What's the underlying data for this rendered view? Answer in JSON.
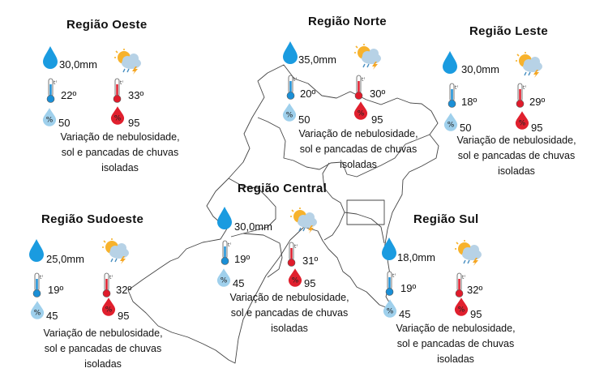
{
  "regions": {
    "oeste": {
      "title": "Região Oeste",
      "rain": "30,0mm",
      "temp_min": "22º",
      "temp_max": "33º",
      "hum_min": "50",
      "hum_max": "95",
      "description": [
        "Variação de nebulosidade,",
        "sol e pancadas de chuvas",
        "isoladas"
      ]
    },
    "norte": {
      "title": "Região Norte",
      "rain": "35,0mm",
      "temp_min": "20º",
      "temp_max": "30º",
      "hum_min": "50",
      "hum_max": "95",
      "description": [
        "Variação de nebulosidade,",
        "sol e pancadas de chuvas",
        "isoladas"
      ]
    },
    "leste": {
      "title": "Região Leste",
      "rain": "30,0mm",
      "temp_min": "18º",
      "temp_max": "29º",
      "hum_min": "50",
      "hum_max": "95",
      "description": [
        "Variação de nebulosidade,",
        "sol e pancadas de chuvas",
        "isoladas"
      ]
    },
    "central": {
      "title": "Região Central",
      "rain": "30,0mm",
      "temp_min": "19º",
      "temp_max": "31º",
      "hum_min": "45",
      "hum_max": "95",
      "description": [
        "Variação de nebulosidade,",
        "sol e pancadas de chuvas",
        "isoladas"
      ]
    },
    "sudoeste": {
      "title": "Região Sudoeste",
      "rain": "25,0mm",
      "temp_min": "19º",
      "temp_max": "32º",
      "hum_min": "45",
      "hum_max": "95",
      "description": [
        "Variação de nebulosidade,",
        "sol e pancadas de chuvas",
        "isoladas"
      ]
    },
    "sul": {
      "title": "Região Sul",
      "rain": "18,0mm",
      "temp_min": "19º",
      "temp_max": "32º",
      "hum_min": "45",
      "hum_max": "95",
      "description": [
        "Variação de nebulosidade,",
        "sol e pancadas de chuvas",
        "isoladas"
      ]
    }
  },
  "icons": {
    "rain": "raindrop-icon",
    "weather": "sun-cloud-storm-icon",
    "temp_min": "thermometer-cold-icon",
    "temp_max": "thermometer-hot-icon",
    "hum_min": "humidity-low-icon",
    "hum_max": "humidity-high-icon"
  },
  "colors": {
    "rain_drop": "#1a9be0",
    "cold": "#1a8fd6",
    "hot": "#e01b2b",
    "hum_low": "#9fd0ec",
    "hum_high": "#e0202e",
    "sun": "#f7b22c",
    "cloud": "#b7d2e6",
    "lightning": "#f5a623"
  }
}
